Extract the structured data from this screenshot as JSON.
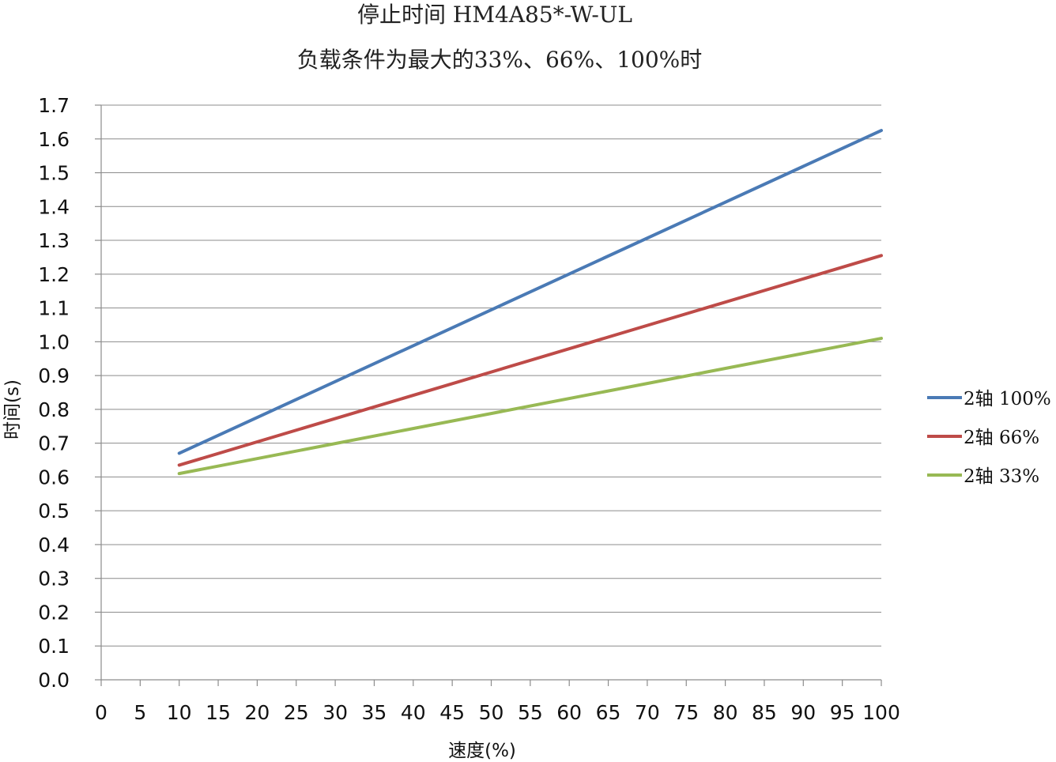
{
  "chart_data": {
    "type": "line",
    "title": "停止时间 HM4A85*-W-UL",
    "subtitle": "负载条件为最大的33%、66%、100%时",
    "xlabel": "速度(%)",
    "ylabel": "时间(s)",
    "xlim": [
      0,
      100
    ],
    "ylim": [
      0,
      1.7
    ],
    "x_ticks": [
      "0",
      "5",
      "10",
      "15",
      "20",
      "25",
      "30",
      "35",
      "40",
      "45",
      "50",
      "55",
      "60",
      "65",
      "70",
      "75",
      "80",
      "85",
      "90",
      "95",
      "100"
    ],
    "y_ticks": [
      "0.0",
      "0.1",
      "0.2",
      "0.3",
      "0.4",
      "0.5",
      "0.6",
      "0.7",
      "0.8",
      "0.9",
      "1.0",
      "1.1",
      "1.2",
      "1.3",
      "1.4",
      "1.5",
      "1.6",
      "1.7"
    ],
    "grid": true,
    "legend_position": "right",
    "series": [
      {
        "name": "2轴 100%",
        "color": "#4a7ab5",
        "x": [
          10,
          100
        ],
        "y": [
          0.67,
          1.625
        ]
      },
      {
        "name": "2轴 66%",
        "color": "#be4b48",
        "x": [
          10,
          100
        ],
        "y": [
          0.635,
          1.255
        ]
      },
      {
        "name": "2轴 33%",
        "color": "#98b954",
        "x": [
          10,
          100
        ],
        "y": [
          0.61,
          1.01
        ]
      }
    ]
  }
}
